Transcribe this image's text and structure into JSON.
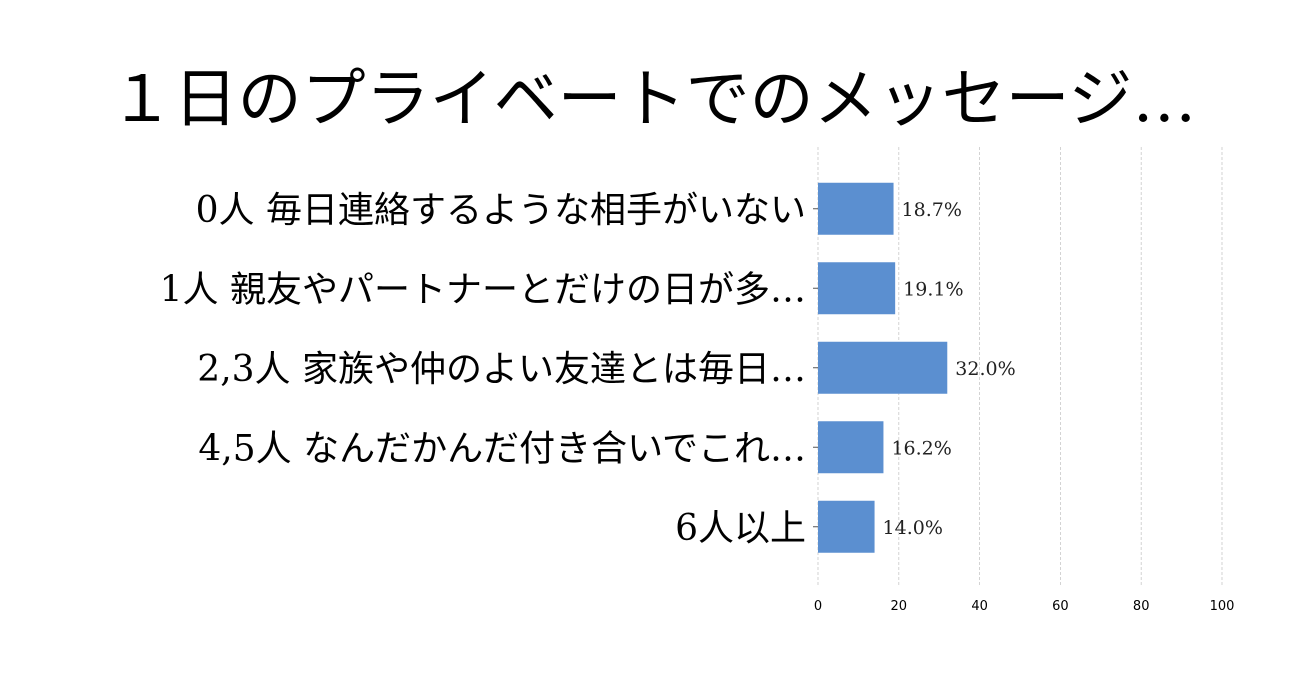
{
  "chart_data": {
    "type": "bar",
    "orientation": "horizontal",
    "title": "１日のプライベートでのメッセージ…",
    "categories": [
      "0人 毎日連絡するような相手がいない",
      "1人 親友やパートナーとだけの日が多…",
      "2,3人 家族や仲のよい友達とは毎日…",
      "4,5人 なんだかんだ付き合いでこれ…",
      "6人以上"
    ],
    "values": [
      18.7,
      19.1,
      32.0,
      16.2,
      14.0
    ],
    "value_labels": [
      "18.7%",
      "19.1%",
      "32.0%",
      "16.2%",
      "14.0%"
    ],
    "xlim": [
      0,
      100
    ],
    "xticks": [
      0,
      20,
      40,
      60,
      80,
      100
    ],
    "xtick_labels": [
      "0",
      "20",
      "40",
      "60",
      "80",
      "100"
    ],
    "xlabel": "",
    "ylabel": "",
    "grid": "vertical dashed",
    "legend": "none",
    "colors": {
      "bar": "#5b8fd0",
      "grid": "#c8c8c8",
      "tick": "#555555"
    }
  }
}
